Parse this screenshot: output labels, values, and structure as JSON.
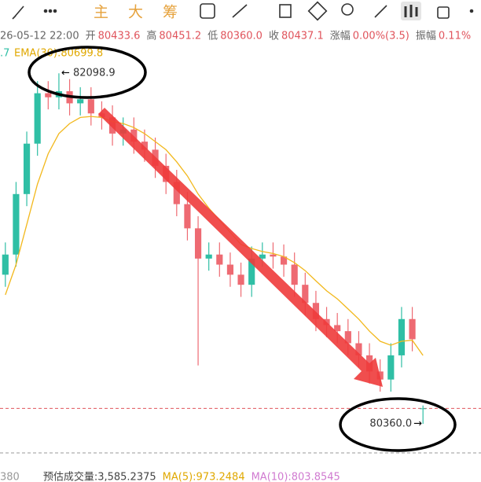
{
  "toolbar": {
    "tabs": [
      "主",
      "大",
      "筹"
    ]
  },
  "header": {
    "time": "26-05-12 22:00",
    "fields": [
      [
        "开",
        "80433.6"
      ],
      [
        "高",
        "80451.2"
      ],
      [
        "低",
        "80360.0"
      ],
      [
        "收",
        "80437.1"
      ],
      [
        "涨幅",
        "0.00%(3.5)"
      ],
      [
        "振幅",
        "0.11%"
      ]
    ]
  },
  "indicator": {
    "cut": ".7",
    "ema": "EMA(30):80699.8"
  },
  "footer": {
    "cut": "380",
    "items": [
      "预估成交量:3,585.2375",
      "MA(5):973.2484",
      "MA(10):803.8545"
    ]
  },
  "chart_data": {
    "type": "candlestick",
    "ylim": [
      80220,
      82170
    ],
    "up_color": "#2fbfa5",
    "down_color": "#ee6a72",
    "open": [
      81100,
      81200,
      81500,
      81750,
      82000,
      81980,
      82010,
      81950,
      81970,
      81900,
      81880,
      81800,
      81820,
      81760,
      81720,
      81640,
      81560,
      81450,
      81330,
      81180,
      81200,
      81150,
      81100,
      81050,
      81180,
      81200,
      81190,
      81150,
      81050,
      80960,
      80880,
      80850,
      80820,
      80760,
      80700,
      80620,
      80580,
      80700,
      80880,
      80433.6
    ],
    "high": [
      81260,
      81560,
      81810,
      82060,
      82060,
      82098.9,
      82070,
      82030,
      82030,
      81960,
      81940,
      81880,
      81880,
      81820,
      81780,
      81700,
      81620,
      81510,
      81390,
      81260,
      81260,
      81210,
      81160,
      81240,
      81260,
      81260,
      81250,
      81210,
      81110,
      81020,
      80940,
      80910,
      80880,
      80820,
      80760,
      80680,
      80760,
      80940,
      80940,
      80451.2
    ],
    "low": [
      81040,
      81140,
      81440,
      81690,
      81920,
      81920,
      81890,
      81890,
      81840,
      81820,
      81740,
      81740,
      81700,
      81660,
      81580,
      81500,
      81390,
      81270,
      80650,
      81120,
      81090,
      81040,
      80990,
      80990,
      81140,
      81130,
      81090,
      80990,
      80900,
      80820,
      80790,
      80760,
      80700,
      80640,
      80560,
      80520,
      80520,
      80640,
      80720,
      80360.0
    ],
    "close": [
      81200,
      81500,
      81750,
      82000,
      81980,
      82010,
      81950,
      81970,
      81900,
      81880,
      81800,
      81820,
      81760,
      81720,
      81640,
      81560,
      81450,
      81330,
      81180,
      81200,
      81150,
      81100,
      81050,
      81180,
      81200,
      81190,
      81150,
      81050,
      80960,
      80880,
      80850,
      80820,
      80760,
      80700,
      80620,
      80580,
      80700,
      80880,
      80780,
      80437.1
    ],
    "ema": {
      "color": "#f2b81c",
      "values": [
        81000,
        81150,
        81350,
        81550,
        81700,
        81800,
        81850,
        81880,
        81885,
        81880,
        81860,
        81850,
        81830,
        81800,
        81760,
        81720,
        81660,
        81590,
        81500,
        81430,
        81370,
        81310,
        81250,
        81230,
        81215,
        81205,
        81190,
        81160,
        81120,
        81070,
        81020,
        80980,
        80930,
        80880,
        80820,
        80770,
        80750,
        80770,
        80775,
        80699.8
      ]
    },
    "current_price": 80437.1,
    "annotations": {
      "high": "82098.9",
      "low": "80360.0"
    }
  }
}
